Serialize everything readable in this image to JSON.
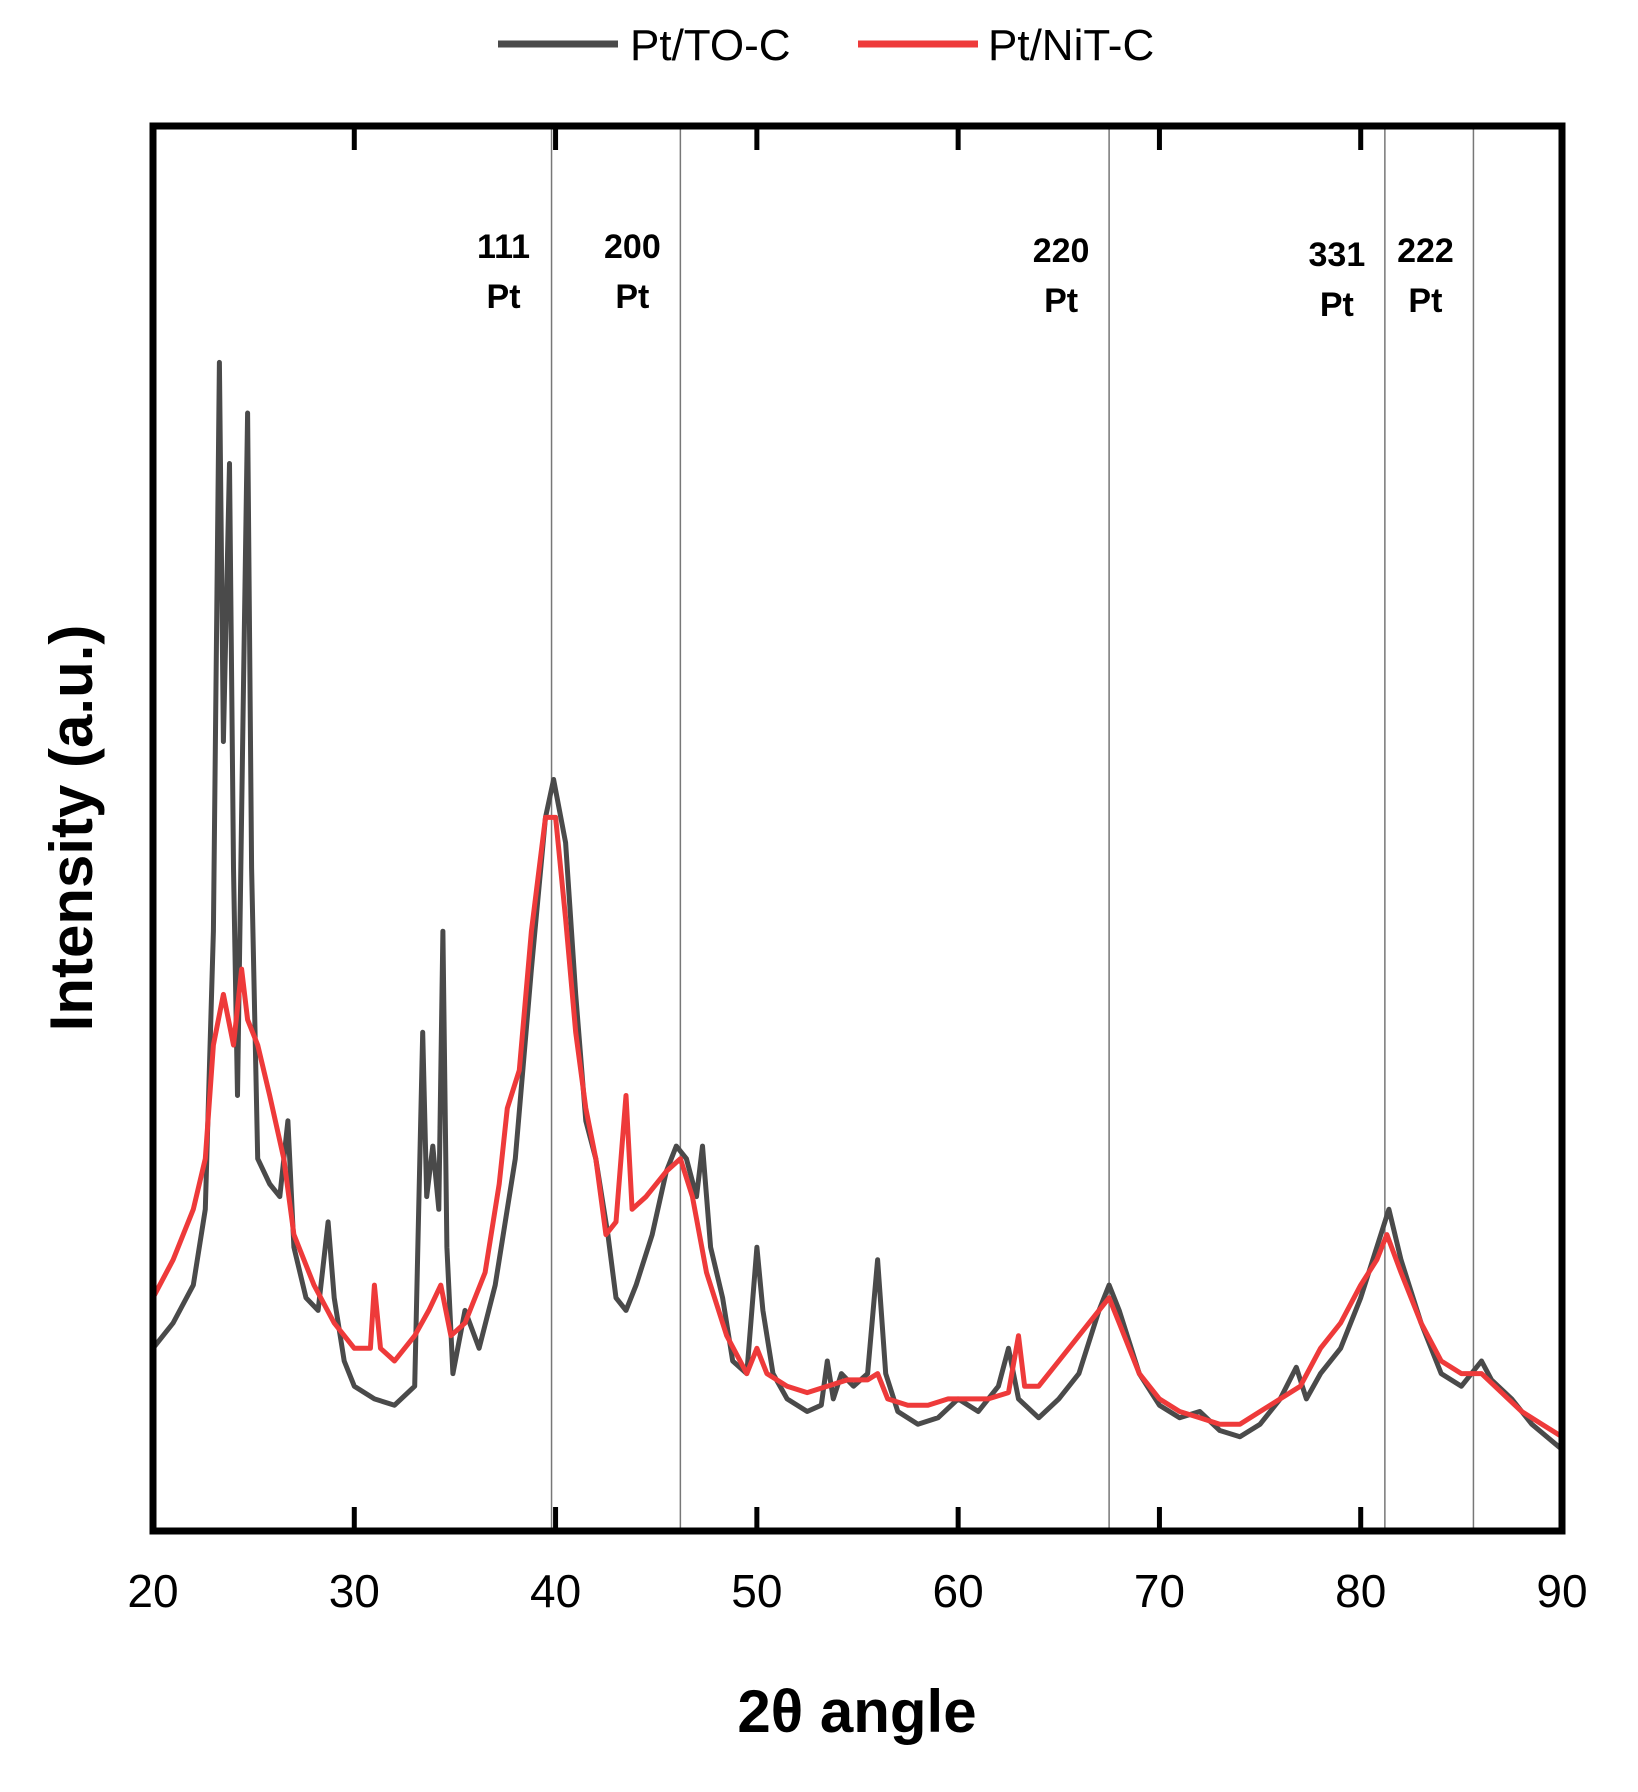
{
  "chart_data": {
    "type": "line",
    "title": "",
    "xlabel": "2θ angle",
    "ylabel": "Intensity (a.u.)",
    "xlim": [
      20,
      90
    ],
    "ylim": [
      0,
      100
    ],
    "x_ticks": [
      20,
      30,
      40,
      50,
      60,
      70,
      80,
      90
    ],
    "x_tick_labels": [
      "20",
      "30",
      "40",
      "50",
      "60",
      "70",
      "80",
      "90"
    ],
    "y_ticks_shown": false,
    "grid": false,
    "legend": {
      "placement": "top-center",
      "entries": [
        "Pt/TO-C",
        "Pt/NiT-C"
      ]
    },
    "reference_lines": [
      {
        "x": 39.8,
        "label_line1": "111",
        "label_line2": "Pt"
      },
      {
        "x": 46.2,
        "label_line1": "200",
        "label_line2": "Pt"
      },
      {
        "x": 67.5,
        "label_line1": "220",
        "label_line2": "Pt"
      },
      {
        "x": 81.2,
        "label_line1": "331",
        "label_line2": "Pt"
      },
      {
        "x": 85.6,
        "label_line1": "222",
        "label_line2": "Pt"
      }
    ],
    "series": [
      {
        "name": "Pt/TO-C",
        "color": "#4a4a4a",
        "points": [
          [
            20,
            12
          ],
          [
            21,
            14
          ],
          [
            22,
            17
          ],
          [
            22.6,
            23
          ],
          [
            23.0,
            45
          ],
          [
            23.3,
            90
          ],
          [
            23.5,
            60
          ],
          [
            23.8,
            82
          ],
          [
            24.0,
            50
          ],
          [
            24.2,
            32
          ],
          [
            24.5,
            65
          ],
          [
            24.7,
            86
          ],
          [
            24.9,
            50
          ],
          [
            25.2,
            27
          ],
          [
            25.8,
            25
          ],
          [
            26.3,
            24
          ],
          [
            26.7,
            30
          ],
          [
            27.0,
            20
          ],
          [
            27.6,
            16
          ],
          [
            28.2,
            15
          ],
          [
            28.7,
            22
          ],
          [
            29.0,
            16
          ],
          [
            29.5,
            11
          ],
          [
            30.0,
            9
          ],
          [
            31.0,
            8
          ],
          [
            32.0,
            7.5
          ],
          [
            33.0,
            9
          ],
          [
            33.4,
            37
          ],
          [
            33.6,
            24
          ],
          [
            33.9,
            28
          ],
          [
            34.2,
            23
          ],
          [
            34.4,
            45
          ],
          [
            34.6,
            20
          ],
          [
            34.9,
            10
          ],
          [
            35.5,
            15
          ],
          [
            36.2,
            12
          ],
          [
            37.0,
            17
          ],
          [
            38.0,
            27
          ],
          [
            38.8,
            42
          ],
          [
            39.5,
            54
          ],
          [
            39.9,
            57
          ],
          [
            40.5,
            52
          ],
          [
            41.0,
            40
          ],
          [
            41.5,
            30
          ],
          [
            42.0,
            27
          ],
          [
            42.6,
            21
          ],
          [
            43.0,
            16
          ],
          [
            43.5,
            15
          ],
          [
            44.0,
            17
          ],
          [
            44.8,
            21
          ],
          [
            45.5,
            26
          ],
          [
            46.0,
            28
          ],
          [
            46.5,
            27
          ],
          [
            47.0,
            24
          ],
          [
            47.3,
            28
          ],
          [
            47.7,
            20
          ],
          [
            48.3,
            16
          ],
          [
            48.8,
            11
          ],
          [
            49.5,
            10
          ],
          [
            50.0,
            20
          ],
          [
            50.3,
            15
          ],
          [
            50.8,
            10
          ],
          [
            51.5,
            8
          ],
          [
            52.5,
            7
          ],
          [
            53.2,
            7.5
          ],
          [
            53.5,
            11
          ],
          [
            53.8,
            8
          ],
          [
            54.2,
            10
          ],
          [
            54.8,
            9
          ],
          [
            55.5,
            10
          ],
          [
            56.0,
            19
          ],
          [
            56.4,
            10
          ],
          [
            57.0,
            7
          ],
          [
            58.0,
            6
          ],
          [
            59.0,
            6.5
          ],
          [
            60.0,
            8
          ],
          [
            61.0,
            7
          ],
          [
            62.0,
            9
          ],
          [
            62.5,
            12
          ],
          [
            63.0,
            8
          ],
          [
            64.0,
            6.5
          ],
          [
            65.0,
            8
          ],
          [
            66.0,
            10
          ],
          [
            67.0,
            15
          ],
          [
            67.5,
            17
          ],
          [
            68.0,
            15
          ],
          [
            69.0,
            10
          ],
          [
            70.0,
            7.5
          ],
          [
            71.0,
            6.5
          ],
          [
            72.0,
            7
          ],
          [
            73.0,
            5.5
          ],
          [
            74.0,
            5
          ],
          [
            75.0,
            6
          ],
          [
            76.0,
            8
          ],
          [
            76.8,
            10.5
          ],
          [
            77.3,
            8
          ],
          [
            78.0,
            10
          ],
          [
            79.0,
            12
          ],
          [
            80.0,
            16
          ],
          [
            80.8,
            20
          ],
          [
            81.4,
            23
          ],
          [
            82.0,
            19
          ],
          [
            83.0,
            14
          ],
          [
            84.0,
            10
          ],
          [
            85.0,
            9
          ],
          [
            86.0,
            11
          ],
          [
            86.5,
            9.5
          ],
          [
            87.5,
            8
          ],
          [
            88.5,
            6
          ],
          [
            90.0,
            4
          ]
        ]
      },
      {
        "name": "Pt/NiT-C",
        "color": "#ee3a3a",
        "points": [
          [
            20,
            16
          ],
          [
            21,
            19
          ],
          [
            22,
            23
          ],
          [
            22.6,
            27
          ],
          [
            23.0,
            36
          ],
          [
            23.5,
            40
          ],
          [
            24.0,
            36
          ],
          [
            24.4,
            42
          ],
          [
            24.7,
            38
          ],
          [
            25.2,
            36
          ],
          [
            25.8,
            32
          ],
          [
            26.5,
            27
          ],
          [
            27.0,
            21
          ],
          [
            28.0,
            17
          ],
          [
            29.0,
            14
          ],
          [
            30.0,
            12
          ],
          [
            30.8,
            12
          ],
          [
            31.0,
            17
          ],
          [
            31.3,
            12
          ],
          [
            32.0,
            11
          ],
          [
            33.0,
            13
          ],
          [
            33.7,
            15
          ],
          [
            34.3,
            17
          ],
          [
            34.8,
            13
          ],
          [
            35.5,
            14
          ],
          [
            36.5,
            18
          ],
          [
            37.2,
            25
          ],
          [
            37.6,
            31
          ],
          [
            38.2,
            34
          ],
          [
            38.8,
            45
          ],
          [
            39.5,
            54
          ],
          [
            40.0,
            54
          ],
          [
            40.5,
            46
          ],
          [
            41.0,
            37
          ],
          [
            41.5,
            31
          ],
          [
            42.0,
            27
          ],
          [
            42.5,
            21
          ],
          [
            43.0,
            22
          ],
          [
            43.5,
            32
          ],
          [
            43.8,
            23
          ],
          [
            44.5,
            24
          ],
          [
            45.5,
            26
          ],
          [
            46.2,
            27
          ],
          [
            46.8,
            24
          ],
          [
            47.5,
            18
          ],
          [
            48.5,
            13
          ],
          [
            49.5,
            10
          ],
          [
            50.0,
            12
          ],
          [
            50.5,
            10
          ],
          [
            51.5,
            9
          ],
          [
            52.5,
            8.5
          ],
          [
            53.5,
            9
          ],
          [
            54.5,
            9.5
          ],
          [
            55.5,
            9.5
          ],
          [
            56.0,
            10
          ],
          [
            56.5,
            8
          ],
          [
            57.5,
            7.5
          ],
          [
            58.5,
            7.5
          ],
          [
            59.5,
            8
          ],
          [
            60.5,
            8
          ],
          [
            61.5,
            8
          ],
          [
            62.5,
            8.5
          ],
          [
            63.0,
            13
          ],
          [
            63.3,
            9
          ],
          [
            64.0,
            9
          ],
          [
            65.0,
            11
          ],
          [
            66.0,
            13
          ],
          [
            67.0,
            15
          ],
          [
            67.5,
            16
          ],
          [
            68.0,
            14
          ],
          [
            69.0,
            10
          ],
          [
            70.0,
            8
          ],
          [
            71.0,
            7
          ],
          [
            72.0,
            6.5
          ],
          [
            73.0,
            6
          ],
          [
            74.0,
            6
          ],
          [
            75.0,
            7
          ],
          [
            76.0,
            8
          ],
          [
            77.0,
            9
          ],
          [
            78.0,
            12
          ],
          [
            79.0,
            14
          ],
          [
            80.0,
            17
          ],
          [
            80.8,
            19
          ],
          [
            81.3,
            21
          ],
          [
            82.0,
            18
          ],
          [
            83.0,
            14
          ],
          [
            84.0,
            11
          ],
          [
            85.0,
            10
          ],
          [
            86.0,
            10
          ],
          [
            87.0,
            8.5
          ],
          [
            88.0,
            7
          ],
          [
            89.0,
            6
          ],
          [
            90.0,
            5
          ]
        ]
      }
    ]
  }
}
